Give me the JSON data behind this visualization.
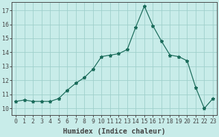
{
  "x": [
    0,
    1,
    2,
    3,
    4,
    5,
    6,
    7,
    8,
    9,
    10,
    11,
    12,
    13,
    14,
    15,
    16,
    17,
    18,
    19,
    20,
    21,
    22,
    23
  ],
  "y": [
    10.5,
    10.6,
    10.5,
    10.5,
    10.5,
    10.7,
    11.3,
    11.8,
    12.2,
    12.8,
    13.7,
    13.8,
    13.9,
    14.2,
    15.8,
    17.3,
    15.9,
    14.8,
    13.8,
    13.7,
    13.4,
    11.5,
    10.0,
    10.7
  ],
  "line_color": "#1a6b5a",
  "marker": "*",
  "marker_size": 3.5,
  "background_color": "#c8ece9",
  "grid_color": "#9dcfcb",
  "axis_color": "#444444",
  "xlabel": "Humidex (Indice chaleur)",
  "xlim": [
    -0.5,
    23.5
  ],
  "ylim": [
    9.5,
    17.6
  ],
  "yticks": [
    10,
    11,
    12,
    13,
    14,
    15,
    16,
    17
  ],
  "xticks": [
    0,
    1,
    2,
    3,
    4,
    5,
    6,
    7,
    8,
    9,
    10,
    11,
    12,
    13,
    14,
    15,
    16,
    17,
    18,
    19,
    20,
    21,
    22,
    23
  ],
  "label_fontsize": 7.5,
  "tick_fontsize": 6.0
}
